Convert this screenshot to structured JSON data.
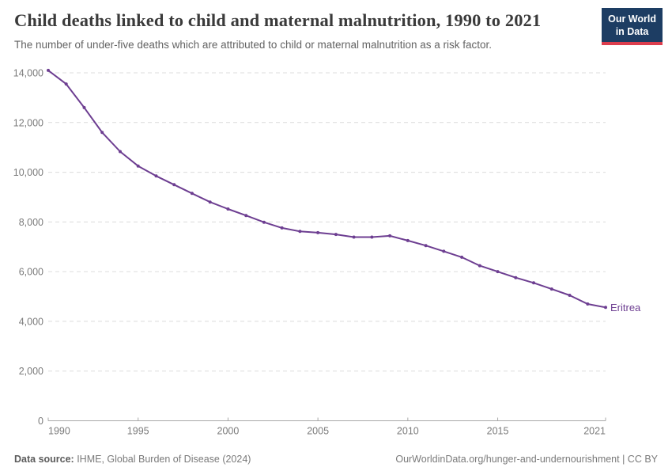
{
  "header": {
    "title": "Child deaths linked to child and maternal malnutrition, 1990 to 2021",
    "subtitle": "The number of under-five deaths which are attributed to child or maternal malnutrition as a risk factor.",
    "logo": {
      "line1": "Our World",
      "line2": "in Data",
      "bg_color": "#1d3d63",
      "accent_color": "#dc3d4d"
    }
  },
  "chart_data": {
    "type": "line",
    "title": "Child deaths linked to child and maternal malnutrition, 1990 to 2021",
    "subtitle": "The number of under-five deaths which are attributed to child or maternal malnutrition as a risk factor.",
    "xlabel": "",
    "ylabel": "",
    "x": [
      1990,
      1991,
      1992,
      1993,
      1994,
      1995,
      1996,
      1997,
      1998,
      1999,
      2000,
      2001,
      2002,
      2003,
      2004,
      2005,
      2006,
      2007,
      2008,
      2009,
      2010,
      2011,
      2012,
      2013,
      2014,
      2015,
      2016,
      2017,
      2018,
      2019,
      2020,
      2021
    ],
    "series": [
      {
        "name": "Eritrea",
        "color": "#6d3e91",
        "values": [
          14100,
          13550,
          12600,
          11600,
          10830,
          10250,
          9850,
          9500,
          9150,
          8800,
          8520,
          8260,
          7990,
          7760,
          7620,
          7570,
          7500,
          7390,
          7390,
          7440,
          7250,
          7050,
          6820,
          6580,
          6240,
          6000,
          5760,
          5550,
          5300,
          5050,
          4700,
          4560
        ]
      }
    ],
    "xlim": [
      1990,
      2021
    ],
    "ylim": [
      0,
      14000
    ],
    "x_ticks": [
      1990,
      1995,
      2000,
      2005,
      2010,
      2015,
      2021
    ],
    "y_ticks": [
      0,
      2000,
      4000,
      6000,
      8000,
      10000,
      12000,
      14000
    ],
    "y_tick_labels": [
      "0",
      "2,000",
      "4,000",
      "6,000",
      "8,000",
      "10,000",
      "12,000",
      "14,000"
    ],
    "grid": true,
    "legend_position": "end-of-line",
    "end_label": "Eritrea",
    "colors": {
      "line": "#6d3e91",
      "gridline": "#dcdcdc",
      "axis": "#a8a8a8",
      "tick_label": "#7b7b7b"
    }
  },
  "footer": {
    "source_label": "Data source:",
    "source_text": " IHME, Global Burden of Disease (2024)",
    "link_text": "OurWorldinData.org/hunger-and-undernourishment | CC BY"
  }
}
